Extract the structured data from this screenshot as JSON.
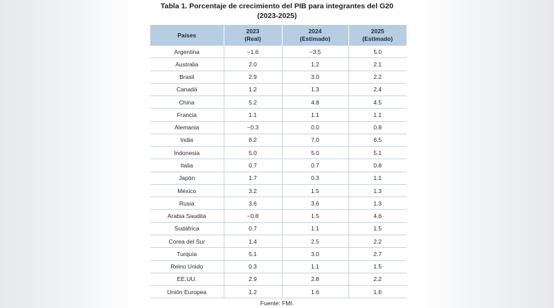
{
  "title": {
    "line1": "Tabla 1. Porcentaje de crecimiento del PIB para integrantes del G20",
    "line2": "(2023-2025)"
  },
  "table": {
    "headers": [
      {
        "line1": "Países",
        "line2": ""
      },
      {
        "line1": "2023",
        "line2": "(Real)"
      },
      {
        "line1": "2024",
        "line2": "(Estimado)"
      },
      {
        "line1": "2025",
        "line2": "(Estimado)"
      }
    ],
    "rows": [
      [
        "Argentina",
        "−1.6",
        "−3.5",
        "5.0"
      ],
      [
        "Australia",
        "2.0",
        "1.2",
        "2.1"
      ],
      [
        "Brasil",
        "2.9",
        "3.0",
        "2.2"
      ],
      [
        "Canadá",
        "1.2",
        "1.3",
        "2.4"
      ],
      [
        "China",
        "5.2",
        "4.8",
        "4.5"
      ],
      [
        "Francia",
        "1.1",
        "1.1",
        "1.1"
      ],
      [
        "Alemania",
        "−0.3",
        "0.0",
        "0.8"
      ],
      [
        "India",
        "8.2",
        "7.0",
        "6.5"
      ],
      [
        "Indonesia",
        "5.0",
        "5.0",
        "5.1"
      ],
      [
        "Italia",
        "0.7",
        "0.7",
        "0.8"
      ],
      [
        "Japón",
        "1.7",
        "0.3",
        "1.1"
      ],
      [
        "México",
        "3.2",
        "1.5",
        "1.3"
      ],
      [
        "Rusia",
        "3.6",
        "3.6",
        "1.3"
      ],
      [
        "Arabia Saudita",
        "−0.8",
        "1.5",
        "4.6"
      ],
      [
        "Sudáfrica",
        "0.7",
        "1.1",
        "1.5"
      ],
      [
        "Corea del Sur",
        "1.4",
        "2.5",
        "2.2"
      ],
      [
        "Turquía",
        "5.1",
        "3.0",
        "2.7"
      ],
      [
        "Reino Unido",
        "0.3",
        "1.1",
        "1.5"
      ],
      [
        "EE.UU.",
        "2.9",
        "2.8",
        "2.2"
      ],
      [
        "Unión Europea",
        "1.2",
        "1.6",
        "1.6"
      ]
    ]
  },
  "source": "Fuente: FMI.",
  "colors": {
    "header_bg": "#b6cde3",
    "row_border": "#c9d3dd"
  }
}
